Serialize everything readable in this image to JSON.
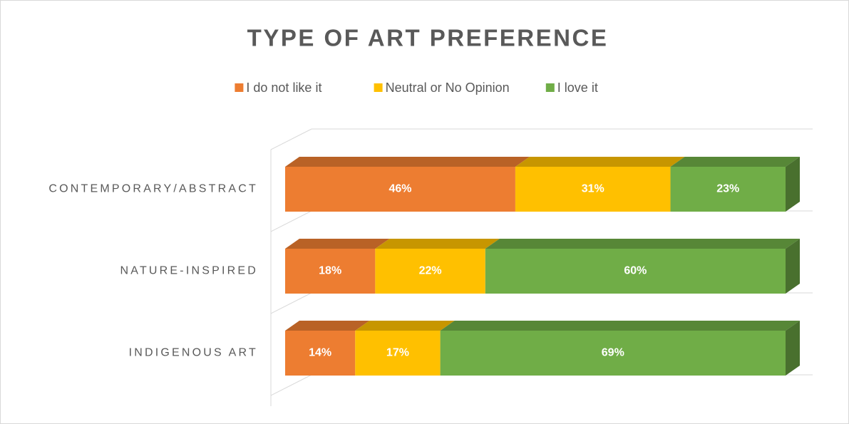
{
  "chart_data": {
    "type": "stacked-bar-3d",
    "orientation": "horizontal",
    "title": "TYPE OF ART PREFERENCE",
    "categories": [
      "CONTEMPORARY/ABSTRACT",
      "NATURE-INSPIRED",
      "INDIGENOUS ART"
    ],
    "series": [
      {
        "name": "I do not like it",
        "color": "#ED7D31",
        "values": [
          46,
          18,
          14
        ],
        "value_labels": [
          "46%",
          "18%",
          "14%"
        ]
      },
      {
        "name": "Neutral or No Opinion",
        "color": "#FFC000",
        "values": [
          31,
          22,
          17
        ],
        "value_labels": [
          "31%",
          "22%",
          "17%"
        ]
      },
      {
        "name": "I love it",
        "color": "#70AD47",
        "values": [
          23,
          60,
          69
        ],
        "value_labels": [
          "23%",
          "60%",
          "69%"
        ]
      }
    ],
    "legend": "top"
  }
}
